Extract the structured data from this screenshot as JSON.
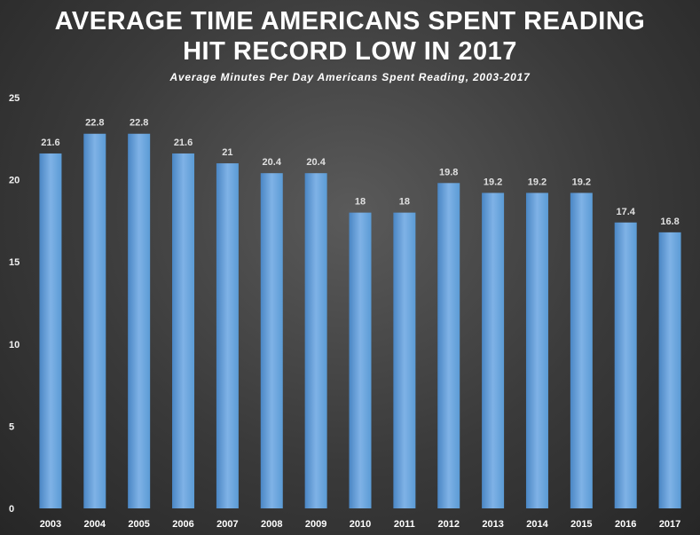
{
  "chart_data": {
    "type": "bar",
    "title": [
      "AVERAGE TIME AMERICANS SPENT READING",
      "HIT RECORD LOW IN 2017"
    ],
    "subtitle": "Average Minutes Per Day Americans Spent Reading, 2003-2017",
    "xlabel": "",
    "ylabel": "",
    "categories": [
      "2003",
      "2004",
      "2005",
      "2006",
      "2007",
      "2008",
      "2009",
      "2010",
      "2011",
      "2012",
      "2013",
      "2014",
      "2015",
      "2016",
      "2017"
    ],
    "values": [
      21.6,
      22.8,
      22.8,
      21.6,
      21,
      20.4,
      20.4,
      18,
      18,
      19.8,
      19.2,
      19.2,
      19.2,
      17.4,
      16.8
    ],
    "data_labels": [
      "21.6",
      "22.8",
      "22.8",
      "21.6",
      "21",
      "20.4",
      "20.4",
      "18",
      "18",
      "19.8",
      "19.2",
      "19.2",
      "19.2",
      "17.4",
      "16.8"
    ],
    "ylim": [
      0,
      25
    ],
    "yticks": [
      "0",
      "5",
      "10",
      "15",
      "20",
      "25"
    ],
    "grid": false,
    "legend": "none",
    "colors": {
      "bar": "#5b9bd5",
      "bar_light": "#7fb2e6",
      "bar_dark": "#4a86c4"
    }
  }
}
